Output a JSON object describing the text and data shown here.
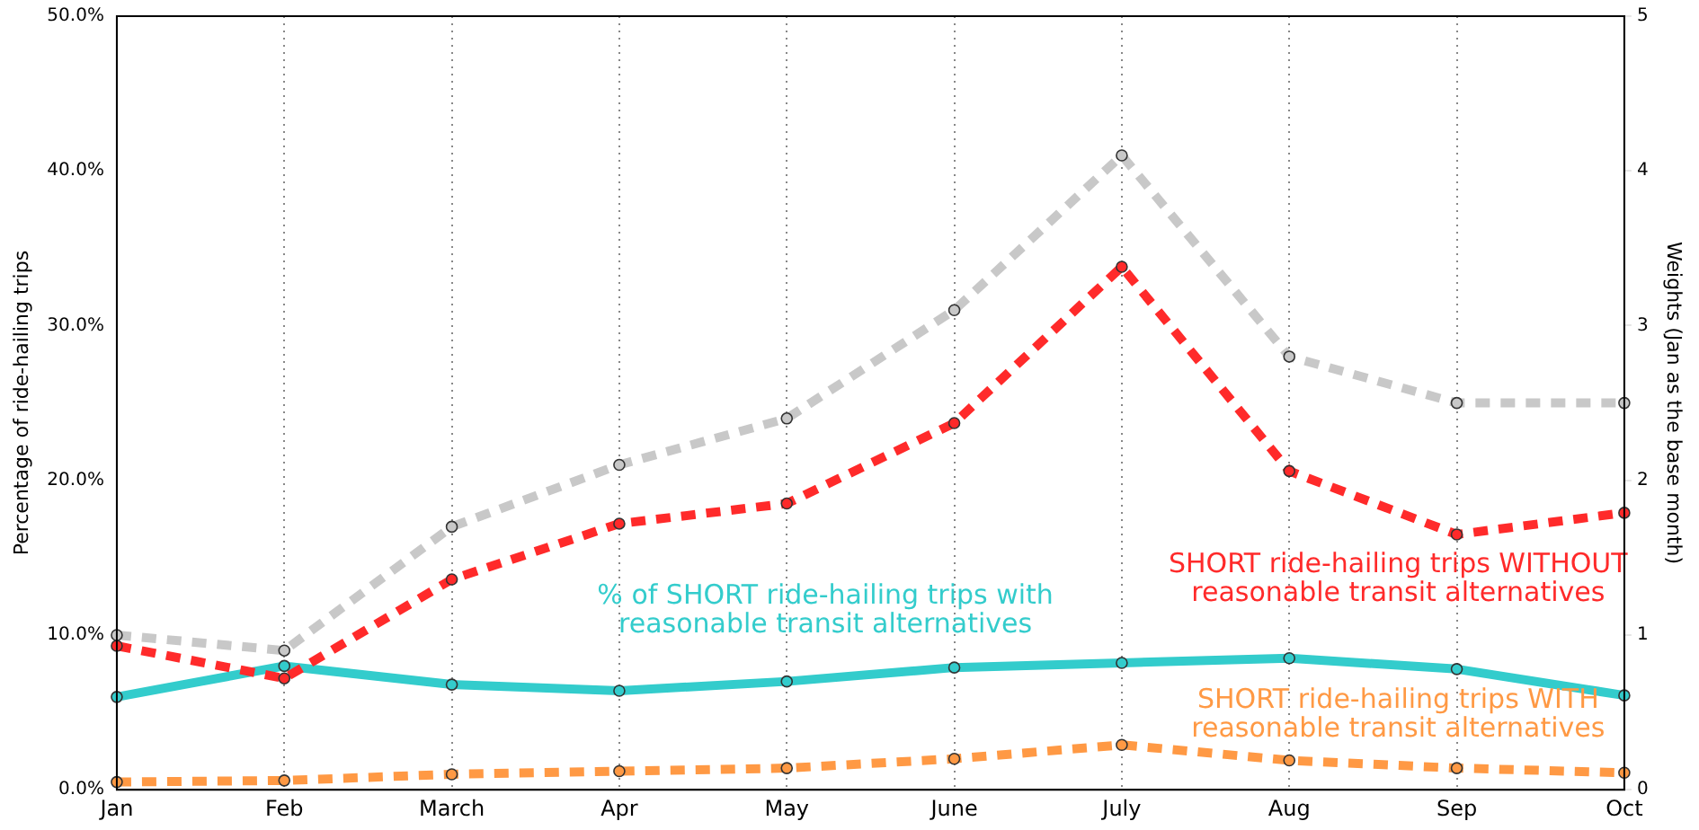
{
  "chart_data": {
    "type": "line",
    "ylabel": "Percentage of ride-hailing trips",
    "y2label": "Weights (Jan as the base month)",
    "categories": [
      "Jan",
      "Feb",
      "March",
      "Apr",
      "May",
      "June",
      "July",
      "Aug",
      "Sep",
      "Oct"
    ],
    "series": [
      {
        "color": "#c8c8c8",
        "axis": "y2",
        "line_style": "dashed",
        "values": [
          1.0,
          0.9,
          1.7,
          2.1,
          2.4,
          3.1,
          4.1,
          2.8,
          2.5,
          2.5
        ]
      },
      {
        "name": "SHORT ride-hailing trips WITHOUT reasonable transit alternatives",
        "color": "#ff2a2a",
        "line_style": "dashed",
        "values": [
          9.3,
          7.2,
          13.6,
          17.2,
          18.5,
          23.7,
          33.8,
          20.6,
          16.5,
          17.9
        ]
      },
      {
        "name": "% of SHORT ride-hailing trips with reasonable transit alternatives",
        "color": "#33cccc",
        "line_style": "solid",
        "values": [
          6.0,
          8.0,
          6.8,
          6.4,
          7.0,
          7.9,
          8.2,
          8.5,
          7.8,
          6.1
        ]
      },
      {
        "name": "SHORT ride-hailing trips WITH reasonable transit alternatives",
        "color": "#ff9944",
        "line_style": "dashed",
        "values": [
          0.5,
          0.6,
          1.0,
          1.2,
          1.4,
          2.0,
          2.9,
          1.9,
          1.4,
          1.1
        ]
      }
    ],
    "ylim": [
      0,
      50
    ],
    "yticks": [
      {
        "value": 0,
        "label": "0.0%"
      },
      {
        "value": 10,
        "label": "10.0%"
      },
      {
        "value": 20,
        "label": "20.0%"
      },
      {
        "value": 30,
        "label": "30.0%"
      },
      {
        "value": 40,
        "label": "40.0%"
      },
      {
        "value": 50,
        "label": "50.0%"
      }
    ],
    "y2lim": [
      0,
      5
    ],
    "y2ticks": [
      0,
      1,
      2,
      3,
      4,
      5
    ],
    "grid": "x",
    "legend": false,
    "marker": "circle"
  }
}
